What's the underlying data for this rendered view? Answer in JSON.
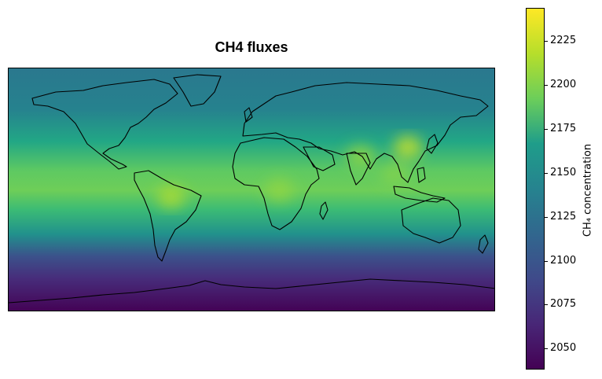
{
  "figure": {
    "title": "CH4 fluxes",
    "projection": "equirectangular (plate carrée)",
    "basemap": [
      "coastlines",
      "country borders"
    ]
  },
  "colorbar": {
    "label": "CH₄ concentration",
    "colormap": "viridis",
    "min": 2038,
    "max": 2244,
    "ticks": [
      2050,
      2075,
      2100,
      2125,
      2150,
      2175,
      2200,
      2225
    ],
    "tick_labels": [
      "2050",
      "2075",
      "2100",
      "2125",
      "2150",
      "2175",
      "2200",
      "2225"
    ],
    "colors": [
      "#440154",
      "#482777",
      "#3f4a8a",
      "#31678e",
      "#26838f",
      "#1f9d8a",
      "#6cce5a",
      "#b6de2b",
      "#fee825"
    ]
  },
  "field": {
    "description": "Latitudinal gradient: highest in tropics/northern mid-latitudes, lowest over Antarctica",
    "zonal_profile": [
      {
        "lat": 90,
        "value": 2110
      },
      {
        "lat": 60,
        "value": 2120
      },
      {
        "lat": 30,
        "value": 2150
      },
      {
        "lat": 15,
        "value": 2175
      },
      {
        "lat": 0,
        "value": 2180
      },
      {
        "lat": -15,
        "value": 2160
      },
      {
        "lat": -30,
        "value": 2120
      },
      {
        "lat": -45,
        "value": 2090
      },
      {
        "lat": -60,
        "value": 2060
      },
      {
        "lat": -90,
        "value": 2042
      }
    ],
    "hotspots": [
      {
        "region": "Amazon",
        "lon": -60,
        "lat": -5,
        "value": 2215
      },
      {
        "region": "Central Africa",
        "lon": 20,
        "lat": 0,
        "value": 2205
      },
      {
        "region": "South Asia (India)",
        "lon": 80,
        "lat": 25,
        "value": 2205
      },
      {
        "region": "East China",
        "lon": 115,
        "lat": 32,
        "value": 2225
      },
      {
        "region": "Southeast Asia",
        "lon": 105,
        "lat": 12,
        "value": 2200
      }
    ]
  }
}
